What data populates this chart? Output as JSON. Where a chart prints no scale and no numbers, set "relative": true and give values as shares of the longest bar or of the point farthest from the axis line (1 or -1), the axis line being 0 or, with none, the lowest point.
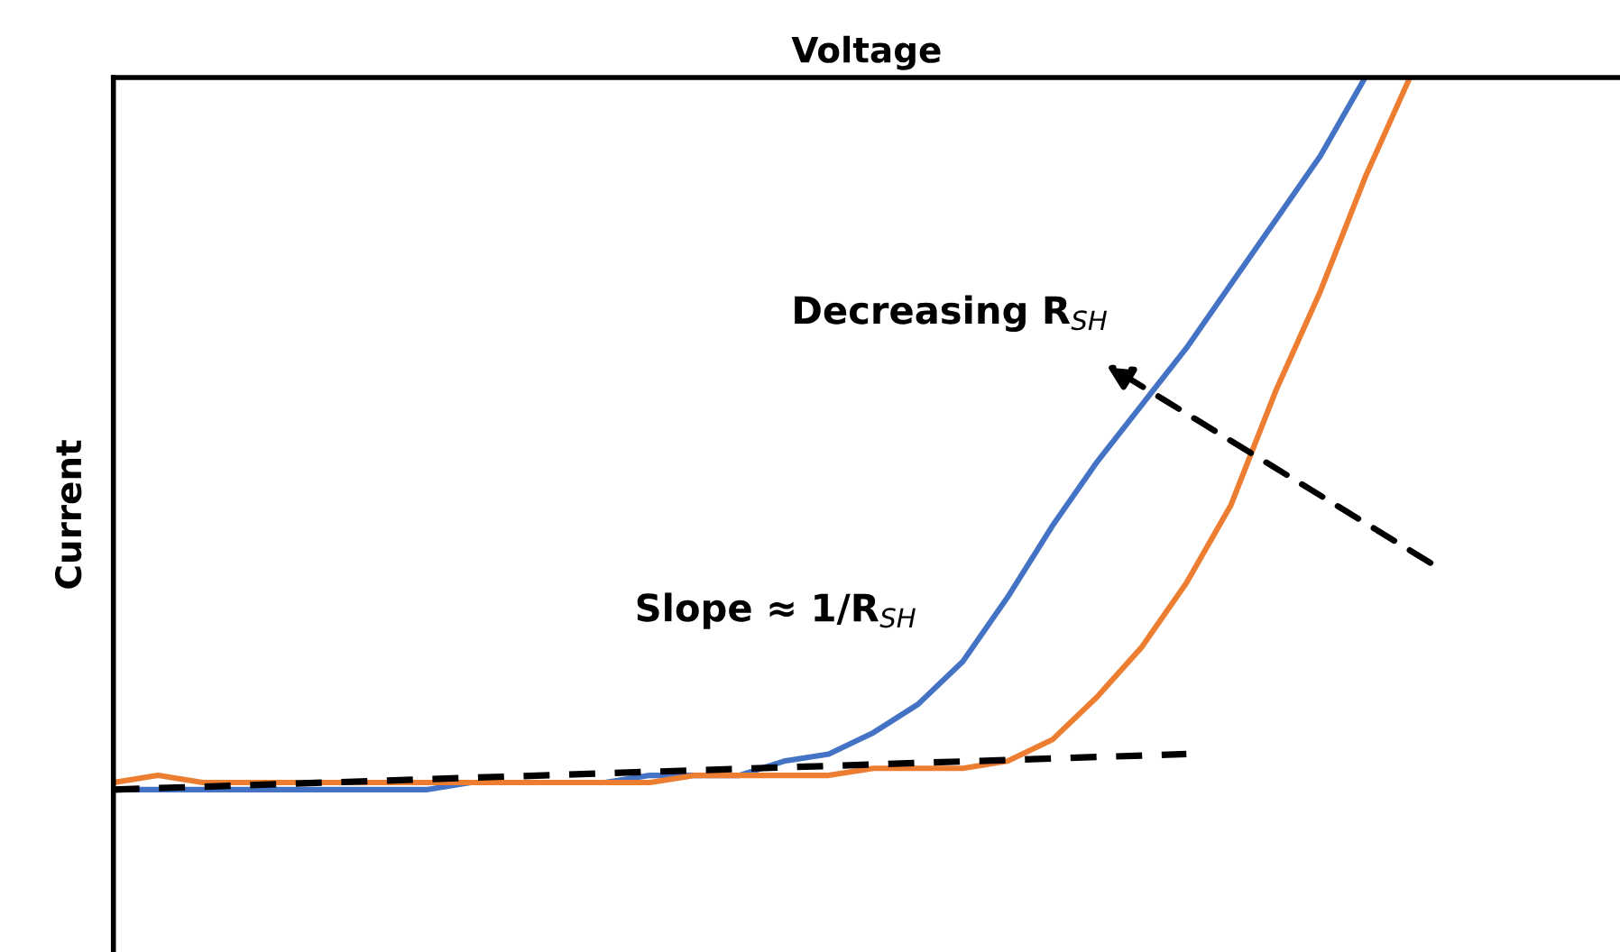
{
  "chart_data": {
    "type": "line",
    "relative": true,
    "xlabel": "Voltage",
    "ylabel": "Current",
    "categories": [
      null,
      null,
      null,
      null,
      null,
      null,
      null,
      null,
      null,
      null,
      null,
      null,
      null,
      null,
      null,
      null,
      null,
      null,
      null,
      null,
      null,
      null,
      null,
      null,
      null,
      null,
      null,
      null,
      null,
      null
    ],
    "series": [
      {
        "color": "#4472c4",
        "values": [
          -1.0,
          -1.0,
          -1.0,
          -1.0,
          -1.0,
          -1.0,
          -1.0,
          -1.0,
          -0.99,
          -0.99,
          -0.99,
          -0.99,
          -0.98,
          -0.98,
          -0.98,
          -0.96,
          -0.95,
          -0.92,
          -0.88,
          -0.82,
          -0.73,
          -0.63,
          -0.54,
          -0.46,
          -0.38,
          -0.29,
          -0.2,
          -0.11,
          0,
          null
        ]
      },
      {
        "color": "#ed7d31",
        "values": [
          -0.99,
          -0.98,
          -0.99,
          -0.99,
          -0.99,
          -0.99,
          -0.99,
          -0.99,
          -0.99,
          -0.99,
          -0.99,
          -0.99,
          -0.99,
          -0.98,
          -0.98,
          -0.98,
          -0.98,
          -0.97,
          -0.97,
          -0.97,
          -0.96,
          -0.93,
          -0.87,
          -0.8,
          -0.71,
          -0.6,
          -0.44,
          -0.3,
          -0.14,
          0
        ]
      },
      {
        "type": "line",
        "color": "#000000",
        "line_style": "dashed",
        "values": [
          -1.0,
          null,
          null,
          null,
          null,
          null,
          null,
          null,
          null,
          null,
          null,
          null,
          null,
          null,
          null,
          null,
          null,
          null,
          null,
          null,
          null,
          null,
          null,
          null,
          -0.95,
          null,
          null,
          null,
          null,
          null
        ]
      }
    ],
    "annotations": [
      "Decreasing R$_{SH}$",
      "Slope ≈ 1/R$_{SH}$"
    ],
    "legend": false,
    "marker": "none",
    "line_style": "solid"
  }
}
